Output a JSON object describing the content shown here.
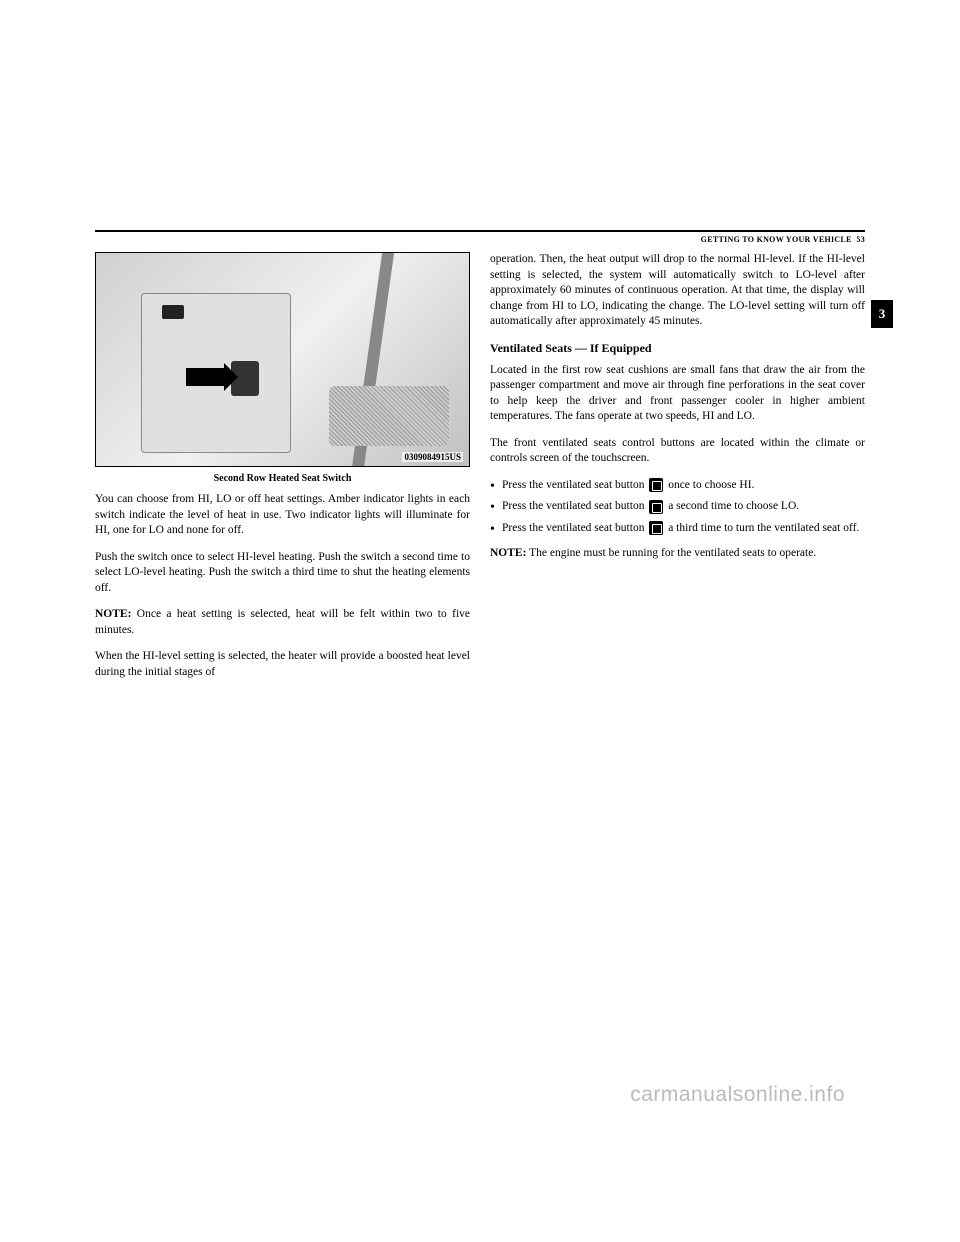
{
  "header": {
    "section_title": "GETTING TO KNOW YOUR VEHICLE",
    "page_number": "53"
  },
  "tab": {
    "chapter": "3"
  },
  "figure": {
    "caption": "Second Row Heated Seat Switch",
    "image_code": "0309084915US"
  },
  "left_column": {
    "para1": "You can choose from HI, LO or off heat settings. Amber indicator lights in each switch indicate the level of heat in use. Two indicator lights will illuminate for HI, one for LO and none for off.",
    "para2": "Push the switch once to select HI-level heating. Push the switch a second time to select LO-level heating. Push the switch a third time to shut the heating elements off.",
    "note_label": "NOTE:",
    "note_text": " Once a heat setting is selected, heat will be felt within two to five minutes.",
    "para4": "When the HI-level setting is selected, the heater will provide a boosted heat level during the initial stages of"
  },
  "right_column": {
    "para1": "operation. Then, the heat output will drop to the normal HI-level. If the HI-level setting is selected, the system will automatically switch to LO-level after approximately 60 minutes of continuous operation. At that time, the display will change from HI to LO, indicating the change. The LO-level setting will turn off automatically after approximately 45 minutes.",
    "subheading": "Ventilated Seats — If Equipped",
    "para2": "Located in the first row seat cushions are small fans that draw the air from the passenger compartment and move air through fine perforations in the seat cover to help keep the driver and front passenger cooler in higher ambient temperatures. The fans operate at two speeds, HI and LO.",
    "para3": "The front ventilated seats control buttons are located within the climate or controls screen of the touchscreen.",
    "bullet1_pre": "Press the ventilated seat button",
    "bullet1_post": "once to choose HI.",
    "bullet2_pre": "Press the ventilated seat button",
    "bullet2_post": "a second time to choose LO.",
    "bullet3_pre": "Press the ventilated seat button",
    "bullet3_post": "a third time to turn the ventilated seat off.",
    "note_label": "NOTE:",
    "note_text": " The engine must be running for the ventilated seats to operate."
  },
  "watermark": "carmanualsonline.info"
}
